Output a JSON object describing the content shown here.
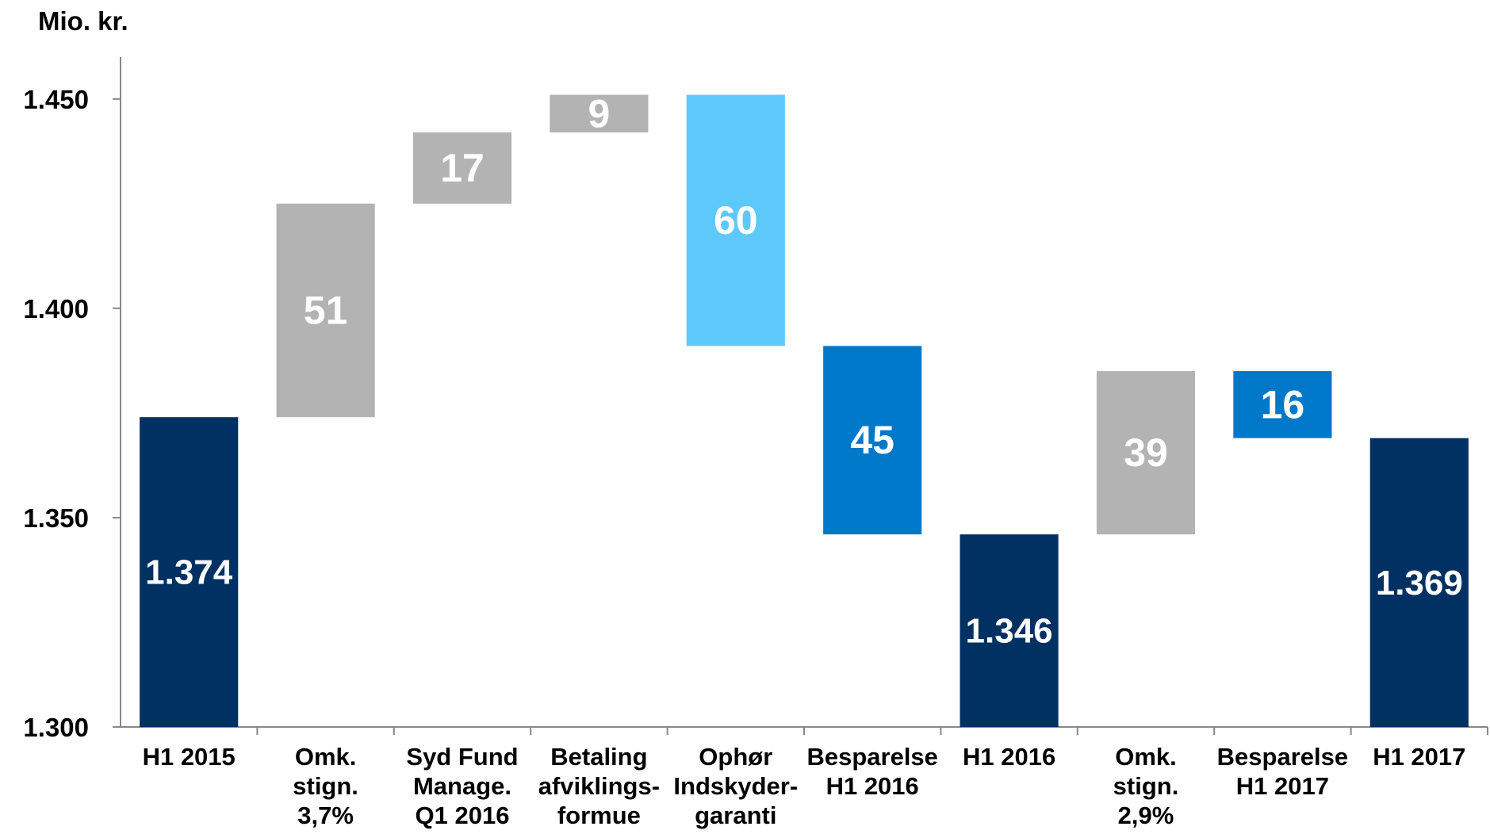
{
  "chart_data": {
    "type": "waterfall",
    "title": "Mio. kr.",
    "categories": [
      [
        "H1 2015"
      ],
      [
        "Omk.",
        "stign.",
        "3,7%"
      ],
      [
        "Syd Fund",
        "Manage.",
        "Q1 2016"
      ],
      [
        "Betaling",
        "afviklings-",
        "formue"
      ],
      [
        "Ophør",
        "Indskyder-",
        "garanti"
      ],
      [
        "Besparelse",
        "H1 2016"
      ],
      [
        "H1 2016"
      ],
      [
        "Omk.",
        "stign.",
        "2,9%"
      ],
      [
        "Besparelse",
        "H1 2017"
      ],
      [
        "H1 2017"
      ]
    ],
    "values": [
      1374,
      51,
      17,
      9,
      -60,
      -45,
      1346,
      39,
      -16,
      1369
    ],
    "value_labels": [
      "1.374",
      "51",
      "17",
      "9",
      "60",
      "45",
      "1.346",
      "39",
      "16",
      "1.369"
    ],
    "is_total": [
      true,
      false,
      false,
      false,
      false,
      false,
      true,
      false,
      false,
      true
    ],
    "colors": [
      "#003162",
      "#b3b3b3",
      "#b3b3b3",
      "#b3b3b3",
      "#5fc8fb",
      "#0078c9",
      "#003162",
      "#b3b3b3",
      "#0078c9",
      "#003162"
    ],
    "ylim": [
      1300,
      1460
    ],
    "yticks": [
      {
        "value": 1300,
        "label": "1.300"
      },
      {
        "value": 1350,
        "label": "1.350"
      },
      {
        "value": 1400,
        "label": "1.400"
      },
      {
        "value": 1450,
        "label": "1.450"
      }
    ]
  }
}
